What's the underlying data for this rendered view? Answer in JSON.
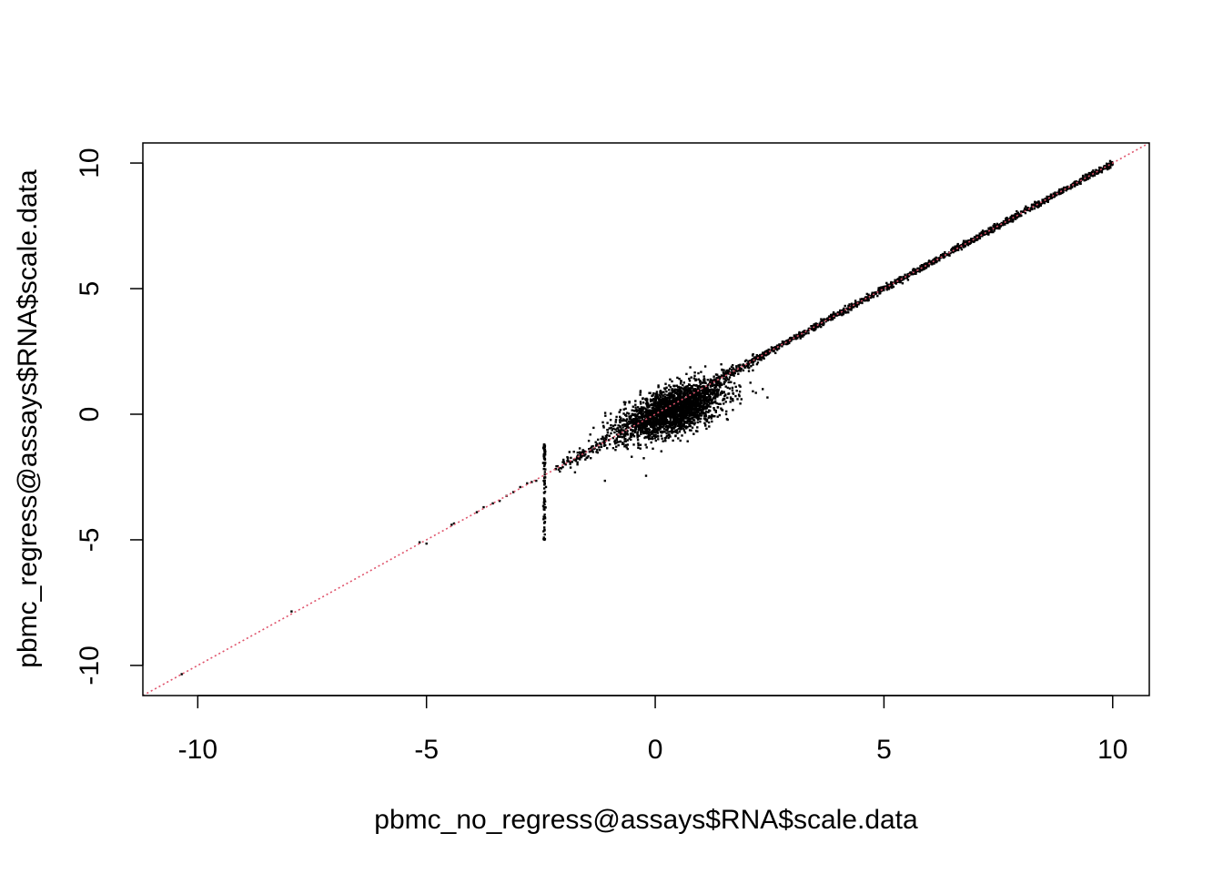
{
  "chart_data": {
    "type": "scatter",
    "title": "",
    "xlabel": "pbmc_no_regress@assays$RNA$scale.data",
    "ylabel": "pbmc_regress@assays$RNA$scale.data",
    "xlim": [
      -11.2,
      10.8
    ],
    "ylim": [
      -11.2,
      10.8
    ],
    "xticks": [
      -10,
      -5,
      0,
      5,
      10
    ],
    "yticks": [
      -10,
      -5,
      0,
      5,
      10
    ],
    "grid": false,
    "legend": "none",
    "colors": {
      "points": "#000000",
      "reference_line": "#DF536B",
      "axes": "#000000",
      "background": "#ffffff"
    },
    "reference_line": {
      "intercept": 0,
      "slope": 1,
      "style": "dotted"
    },
    "point_groups": [
      {
        "name": "diagonal band",
        "x_range": [
          -2.2,
          10.0
        ],
        "y_offset_sd": 0.06,
        "count": 1800
      },
      {
        "name": "central cloud",
        "x_center": 0.4,
        "y_center": 0.15,
        "x_sd": 0.55,
        "y_sd": 0.55,
        "count": 2200
      },
      {
        "name": "vertical streak",
        "x": -2.42,
        "y_range": [
          -5.0,
          -1.2
        ],
        "count": 90
      }
    ],
    "points": [
      [
        -10.35,
        -10.35
      ],
      [
        -7.95,
        -7.85
      ],
      [
        -5.15,
        -5.1
      ],
      [
        -5.0,
        -5.15
      ],
      [
        -4.45,
        -4.4
      ],
      [
        -4.4,
        -4.35
      ],
      [
        -3.9,
        -3.9
      ],
      [
        -3.75,
        -3.7
      ],
      [
        -3.55,
        -3.55
      ],
      [
        -3.4,
        -3.45
      ],
      [
        -3.25,
        -3.25
      ],
      [
        -3.1,
        -3.1
      ],
      [
        -2.95,
        -2.9
      ],
      [
        -2.8,
        -2.75
      ],
      [
        -2.7,
        -2.7
      ],
      [
        -2.6,
        -2.65
      ],
      [
        -2.42,
        -4.6
      ],
      [
        -2.42,
        -5.0
      ],
      [
        -2.42,
        -1.3
      ],
      [
        -2.42,
        -3.8
      ],
      [
        1.55,
        0.0
      ],
      [
        1.85,
        0.9
      ],
      [
        2.35,
        1.0
      ],
      [
        2.2,
        0.85
      ],
      [
        -0.2,
        -2.45
      ],
      [
        -1.1,
        -2.65
      ],
      [
        0.55,
        -1.05
      ],
      [
        -0.25,
        -1.75
      ]
    ]
  }
}
